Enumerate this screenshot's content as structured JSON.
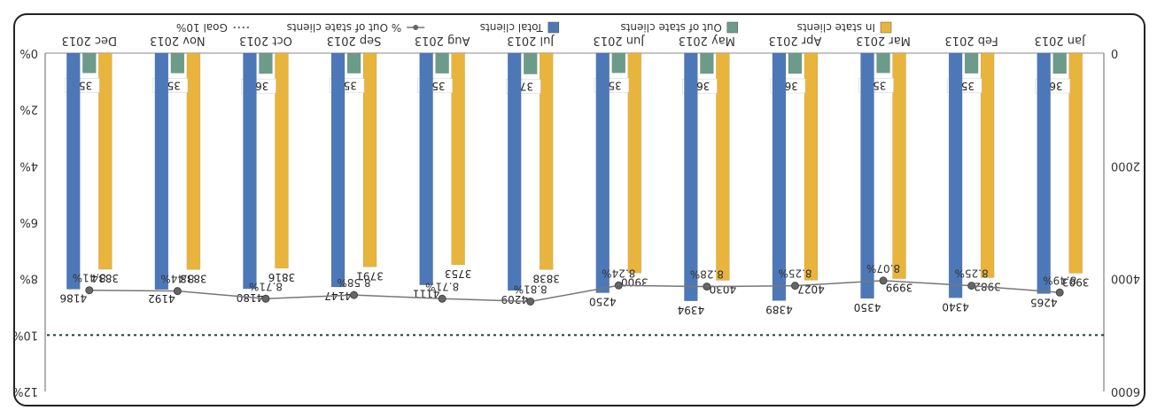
{
  "chart_data": {
    "type": "bar",
    "categories": [
      "Jan 2013",
      "Feb 2013",
      "Mar 2013",
      "Apr 2013",
      "May 2013",
      "Jun 2013",
      "Jul 2013",
      "Aug 2013",
      "Sep 2013",
      "Oct 2013",
      "Nov 2013",
      "Dec 2013"
    ],
    "series": [
      {
        "name": "In state clients",
        "values": [
          3903,
          3982,
          3999,
          4027,
          4030,
          3900,
          3838,
          3753,
          3791,
          3816,
          3838,
          3834
        ],
        "color": "#e8b43c"
      },
      {
        "name": "Out of state clients",
        "values": [
          362,
          358,
          351,
          362,
          364,
          350,
          371,
          358,
          356,
          364,
          354,
          352
        ],
        "color": "#6c9b8a"
      },
      {
        "name": "Total clients",
        "values": [
          4265,
          4340,
          4350,
          4389,
          4394,
          4250,
          4209,
          4111,
          4147,
          4180,
          4192,
          4186
        ],
        "color": "#4d78b8"
      }
    ],
    "line": {
      "name": "% Out of state clients",
      "values": [
        8.49,
        8.25,
        8.07,
        8.25,
        8.28,
        8.24,
        8.81,
        8.71,
        8.58,
        8.71,
        8.44,
        8.41
      ],
      "labels": [
        "8.49%",
        "8.25%",
        "8.07%",
        "8.25%",
        "8.28%",
        "8.24%",
        "8.81%",
        "8.71%",
        "8.58%",
        "8.71%",
        "8.44%",
        "8.41%"
      ],
      "color": "#777777"
    },
    "goal": {
      "name": "Goal 10%",
      "value": 10
    },
    "left_axis": {
      "ticks": [
        "0",
        "2000",
        "4000",
        "6000"
      ],
      "ylim": [
        0,
        6000
      ]
    },
    "right_axis": {
      "ticks": [
        "0%",
        "2%",
        "4%",
        "6%",
        "8%",
        "10%",
        "12%"
      ],
      "ylim": [
        0,
        12
      ]
    },
    "legend_placement": "bottom",
    "rotated": 180
  }
}
